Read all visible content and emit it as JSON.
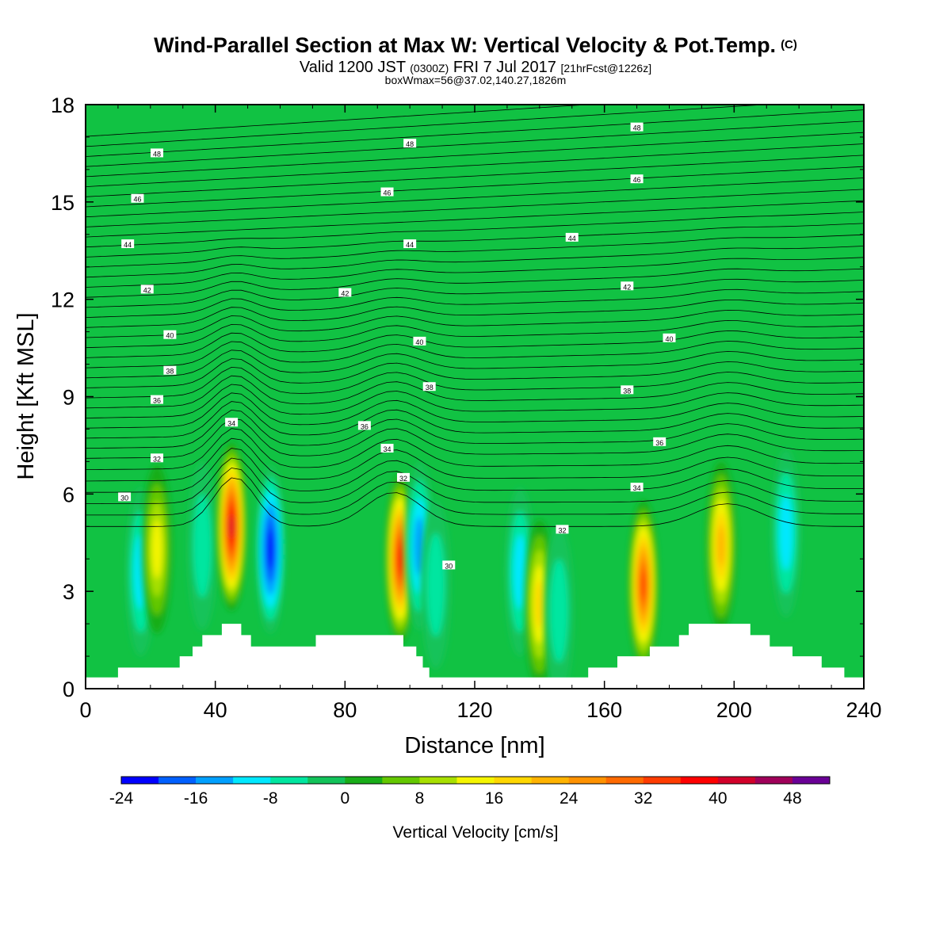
{
  "header": {
    "title": "Wind-Parallel Section at Max W: Vertical Velocity & Pot.Temp.",
    "title_tag": "(C)",
    "valid_prefix": "Valid 1200 JST",
    "valid_utc": "(0300Z)",
    "valid_date": "FRI 7 Jul 2017",
    "forecast_info": "[21hrFcst@1226z]",
    "box_info": "boxWmax=56@37.02,140.27,1826m"
  },
  "chart_data": {
    "type": "heatmap",
    "xlabel": "Distance [nm]",
    "ylabel": "Height [Kft MSL]",
    "xlim": [
      0,
      240
    ],
    "ylim": [
      0,
      18
    ],
    "x_ticks": [
      "0",
      "40",
      "80",
      "120",
      "160",
      "200",
      "240"
    ],
    "y_ticks": [
      "0",
      "3",
      "6",
      "9",
      "12",
      "15",
      "18"
    ],
    "background_color": "#11c243",
    "colorbar": {
      "title": "Vertical Velocity [cm/s]",
      "levels": [
        -24,
        -20,
        -16,
        -12,
        -8,
        -4,
        0,
        4,
        8,
        12,
        16,
        20,
        24,
        28,
        32,
        36,
        40,
        44,
        48,
        52
      ],
      "tick_labels": [
        "-24",
        "-16",
        "-8",
        "0",
        "8",
        "16",
        "24",
        "32",
        "40",
        "48"
      ],
      "colors": [
        "#0000ff",
        "#0060ff",
        "#00a0ff",
        "#00e8ff",
        "#00e6a0",
        "#12c35a",
        "#18ad18",
        "#64c800",
        "#a8e000",
        "#f5f500",
        "#ffd700",
        "#ffb300",
        "#ff9200",
        "#ff6a00",
        "#ff3c00",
        "#ff0000",
        "#d2002a",
        "#a0005a",
        "#6a0096"
      ]
    },
    "vertical_velocity_cells": [
      {
        "x": 17,
        "y": 3.6,
        "w": -12
      },
      {
        "x": 22,
        "y": 4.3,
        "w": 16
      },
      {
        "x": 36,
        "y": 4.4,
        "w": -8
      },
      {
        "x": 45,
        "y": 5.0,
        "w": 44
      },
      {
        "x": 57,
        "y": 4.3,
        "w": -24
      },
      {
        "x": 97,
        "y": 4.0,
        "w": 40
      },
      {
        "x": 103,
        "y": 4.4,
        "w": -16
      },
      {
        "x": 108,
        "y": 3.2,
        "w": -8
      },
      {
        "x": 134,
        "y": 3.6,
        "w": -12
      },
      {
        "x": 140,
        "y": 2.6,
        "w": 20
      },
      {
        "x": 146,
        "y": 2.4,
        "w": -8
      },
      {
        "x": 172,
        "y": 3.2,
        "w": 36
      },
      {
        "x": 196,
        "y": 4.4,
        "w": 24
      },
      {
        "x": 216,
        "y": 4.8,
        "w": -12
      }
    ],
    "theta_contours_label_units": "C",
    "theta_labels": [
      {
        "x": 12,
        "y": 5.9,
        "v": "30"
      },
      {
        "x": 112,
        "y": 3.8,
        "v": "30"
      },
      {
        "x": 22,
        "y": 7.1,
        "v": "32"
      },
      {
        "x": 98,
        "y": 6.5,
        "v": "32"
      },
      {
        "x": 147,
        "y": 4.9,
        "v": "32"
      },
      {
        "x": 45,
        "y": 8.2,
        "v": "34"
      },
      {
        "x": 93,
        "y": 7.4,
        "v": "34"
      },
      {
        "x": 170,
        "y": 6.2,
        "v": "34"
      },
      {
        "x": 22,
        "y": 8.9,
        "v": "36"
      },
      {
        "x": 86,
        "y": 8.1,
        "v": "36"
      },
      {
        "x": 177,
        "y": 7.6,
        "v": "36"
      },
      {
        "x": 26,
        "y": 9.8,
        "v": "38"
      },
      {
        "x": 106,
        "y": 9.3,
        "v": "38"
      },
      {
        "x": 167,
        "y": 9.2,
        "v": "38"
      },
      {
        "x": 26,
        "y": 10.9,
        "v": "40"
      },
      {
        "x": 103,
        "y": 10.7,
        "v": "40"
      },
      {
        "x": 180,
        "y": 10.8,
        "v": "40"
      },
      {
        "x": 19,
        "y": 12.3,
        "v": "42"
      },
      {
        "x": 80,
        "y": 12.2,
        "v": "42"
      },
      {
        "x": 167,
        "y": 12.4,
        "v": "42"
      },
      {
        "x": 13,
        "y": 13.7,
        "v": "44"
      },
      {
        "x": 100,
        "y": 13.7,
        "v": "44"
      },
      {
        "x": 150,
        "y": 13.9,
        "v": "44"
      },
      {
        "x": 16,
        "y": 15.1,
        "v": "46"
      },
      {
        "x": 93,
        "y": 15.3,
        "v": "46"
      },
      {
        "x": 170,
        "y": 15.7,
        "v": "46"
      },
      {
        "x": 22,
        "y": 16.5,
        "v": "48"
      },
      {
        "x": 100,
        "y": 16.8,
        "v": "48"
      },
      {
        "x": 170,
        "y": 17.3,
        "v": "48"
      }
    ],
    "terrain": [
      {
        "x": 0,
        "h": 0.35
      },
      {
        "x": 10,
        "h": 0.35
      },
      {
        "x": 10,
        "h": 0.65
      },
      {
        "x": 29,
        "h": 0.65
      },
      {
        "x": 29,
        "h": 1.0
      },
      {
        "x": 33,
        "h": 1.0
      },
      {
        "x": 33,
        "h": 1.3
      },
      {
        "x": 36,
        "h": 1.3
      },
      {
        "x": 36,
        "h": 1.65
      },
      {
        "x": 42,
        "h": 1.65
      },
      {
        "x": 42,
        "h": 2.0
      },
      {
        "x": 48,
        "h": 2.0
      },
      {
        "x": 48,
        "h": 1.65
      },
      {
        "x": 51,
        "h": 1.65
      },
      {
        "x": 51,
        "h": 1.3
      },
      {
        "x": 71,
        "h": 1.3
      },
      {
        "x": 71,
        "h": 1.65
      },
      {
        "x": 98,
        "h": 1.65
      },
      {
        "x": 98,
        "h": 1.3
      },
      {
        "x": 102,
        "h": 1.3
      },
      {
        "x": 102,
        "h": 1.0
      },
      {
        "x": 104,
        "h": 1.0
      },
      {
        "x": 104,
        "h": 0.65
      },
      {
        "x": 106,
        "h": 0.65
      },
      {
        "x": 106,
        "h": 0.35
      },
      {
        "x": 155,
        "h": 0.35
      },
      {
        "x": 155,
        "h": 0.65
      },
      {
        "x": 164,
        "h": 0.65
      },
      {
        "x": 164,
        "h": 1.0
      },
      {
        "x": 174,
        "h": 1.0
      },
      {
        "x": 174,
        "h": 1.3
      },
      {
        "x": 183,
        "h": 1.3
      },
      {
        "x": 183,
        "h": 1.65
      },
      {
        "x": 186,
        "h": 1.65
      },
      {
        "x": 186,
        "h": 2.0
      },
      {
        "x": 205,
        "h": 2.0
      },
      {
        "x": 205,
        "h": 1.65
      },
      {
        "x": 211,
        "h": 1.65
      },
      {
        "x": 211,
        "h": 1.3
      },
      {
        "x": 218,
        "h": 1.3
      },
      {
        "x": 218,
        "h": 1.0
      },
      {
        "x": 227,
        "h": 1.0
      },
      {
        "x": 227,
        "h": 0.65
      },
      {
        "x": 234,
        "h": 0.65
      },
      {
        "x": 234,
        "h": 0.35
      },
      {
        "x": 240,
        "h": 0.35
      }
    ]
  }
}
